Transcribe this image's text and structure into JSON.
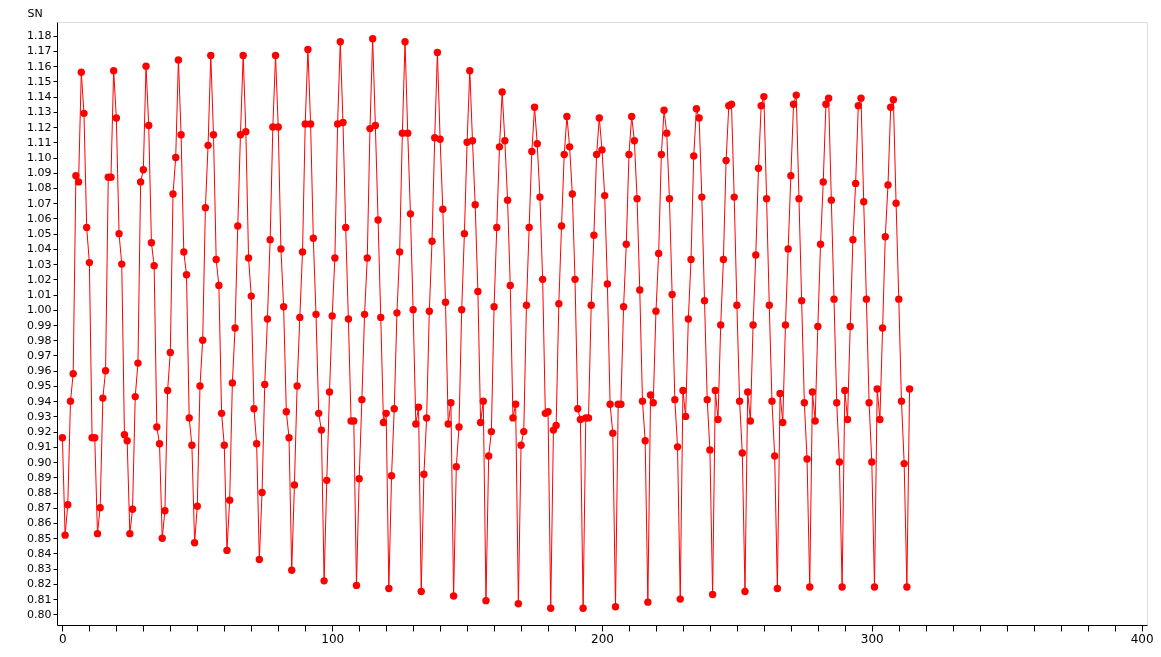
{
  "chart_data": {
    "type": "line",
    "ylabel": "SN",
    "xlim": [
      -2,
      402
    ],
    "ylim": [
      0.793,
      1.189
    ],
    "xticks": [
      0,
      {
        "value": 10,
        "label": null
      },
      {
        "value": 20,
        "label": null
      },
      {
        "value": 30,
        "label": null
      },
      {
        "value": 40,
        "label": null
      },
      {
        "value": 50,
        "label": null
      },
      {
        "value": 60,
        "label": null
      },
      {
        "value": 70,
        "label": null
      },
      {
        "value": 80,
        "label": null
      },
      {
        "value": 90,
        "label": null
      },
      100,
      {
        "value": 110,
        "label": null
      },
      {
        "value": 120,
        "label": null
      },
      {
        "value": 130,
        "label": null
      },
      {
        "value": 140,
        "label": null
      },
      {
        "value": 150,
        "label": null
      },
      {
        "value": 160,
        "label": null
      },
      {
        "value": 170,
        "label": null
      },
      {
        "value": 180,
        "label": null
      },
      {
        "value": 190,
        "label": null
      },
      200,
      {
        "value": 210,
        "label": null
      },
      {
        "value": 220,
        "label": null
      },
      {
        "value": 230,
        "label": null
      },
      {
        "value": 240,
        "label": null
      },
      {
        "value": 250,
        "label": null
      },
      {
        "value": 260,
        "label": null
      },
      {
        "value": 270,
        "label": null
      },
      {
        "value": 280,
        "label": null
      },
      {
        "value": 290,
        "label": null
      },
      300,
      {
        "value": 310,
        "label": null
      },
      {
        "value": 320,
        "label": null
      },
      {
        "value": 330,
        "label": null
      },
      {
        "value": 340,
        "label": null
      },
      {
        "value": 350,
        "label": null
      },
      {
        "value": 360,
        "label": null
      },
      {
        "value": 370,
        "label": null
      },
      {
        "value": 380,
        "label": null
      },
      {
        "value": 390,
        "label": null
      },
      400
    ],
    "yticks": [
      {
        "value": 0.8,
        "label": "0.80"
      },
      0.81,
      0.82,
      0.83,
      0.84,
      0.85,
      0.86,
      0.87,
      0.88,
      0.89,
      {
        "value": 0.9,
        "label": "0.90"
      },
      0.91,
      0.92,
      0.93,
      0.94,
      0.95,
      0.96,
      0.97,
      0.98,
      0.99,
      {
        "value": 1.0,
        "label": "1.00"
      },
      1.01,
      1.02,
      1.03,
      1.04,
      1.05,
      1.06,
      1.07,
      1.08,
      1.09,
      {
        "value": 1.1,
        "label": "1.10"
      },
      1.11,
      1.12,
      1.13,
      1.14,
      1.15,
      1.16,
      1.17,
      1.18
    ],
    "grid": false,
    "marker": "circle",
    "line_style": "solid",
    "series": [
      {
        "color": "#ff0000",
        "x": [
          0,
          1,
          2,
          3,
          4,
          5,
          6,
          7,
          8,
          9,
          10,
          11,
          12,
          13,
          14,
          15,
          16,
          17,
          18,
          19,
          20,
          21,
          22,
          23,
          24,
          25,
          26,
          27,
          28,
          29,
          30,
          31,
          32,
          33,
          34,
          35,
          36,
          37,
          38,
          39,
          40,
          41,
          42,
          43,
          44,
          45,
          46,
          47,
          48,
          49,
          50,
          51,
          52,
          53,
          54,
          55,
          56,
          57,
          58,
          59,
          60,
          61,
          62,
          63,
          64,
          65,
          66,
          67,
          68,
          69,
          70,
          71,
          72,
          73,
          74,
          75,
          76,
          77,
          78,
          79,
          80,
          81,
          82,
          83,
          84,
          85,
          86,
          87,
          88,
          89,
          90,
          91,
          92,
          93,
          94,
          95,
          96,
          97,
          98,
          99,
          100,
          101,
          102,
          103,
          104,
          105,
          106,
          107,
          108,
          109,
          110,
          111,
          112,
          113,
          114,
          115,
          116,
          117,
          118,
          119,
          120,
          121,
          122,
          123,
          124,
          125,
          126,
          127,
          128,
          129,
          130,
          131,
          132,
          133,
          134,
          135,
          136,
          137,
          138,
          139,
          140,
          141,
          142,
          143,
          144,
          145,
          146,
          147,
          148,
          149,
          150,
          151,
          152,
          153,
          154,
          155,
          156,
          157,
          158,
          159,
          160,
          161,
          162,
          163,
          164,
          165,
          166,
          167,
          168,
          169,
          170,
          171,
          172,
          173,
          174,
          175,
          176,
          177,
          178,
          179,
          180,
          181,
          182,
          183,
          184,
          185,
          186,
          187,
          188,
          189,
          190,
          191,
          192,
          193,
          194,
          195,
          196,
          197,
          198,
          199,
          200,
          201,
          202,
          203,
          204,
          205,
          206,
          207,
          208,
          209,
          210,
          211,
          212,
          213,
          214,
          215,
          216,
          217,
          218,
          219,
          220,
          221,
          222,
          223,
          224,
          225,
          226,
          227,
          228,
          229,
          230,
          231,
          232,
          233,
          234,
          235,
          236,
          237,
          238,
          239,
          240,
          241,
          242,
          243,
          244,
          245,
          246,
          247,
          248,
          249,
          250,
          251,
          252,
          253,
          254,
          255,
          256,
          257,
          258,
          259,
          260,
          261,
          262,
          263,
          264,
          265,
          266,
          267,
          268,
          269,
          270,
          271,
          272,
          273,
          274,
          275,
          276,
          277,
          278,
          279,
          280,
          281,
          282,
          283,
          284,
          285,
          286,
          287,
          288,
          289,
          290,
          291,
          292,
          293,
          294,
          295,
          296,
          297,
          298,
          299,
          300,
          301,
          302,
          303,
          304,
          305,
          306,
          307,
          308,
          309,
          310,
          311,
          312,
          313,
          314
        ],
        "values": [
          0.916,
          0.852,
          0.872,
          0.94,
          0.958,
          1.088,
          1.084,
          1.156,
          1.129,
          1.054,
          1.031,
          0.916,
          0.916,
          0.853,
          0.87,
          0.942,
          0.96,
          1.087,
          1.087,
          1.157,
          1.126,
          1.05,
          1.03,
          0.918,
          0.914,
          0.853,
          0.869,
          0.943,
          0.965,
          1.084,
          1.092,
          1.16,
          1.121,
          1.044,
          1.029,
          0.923,
          0.912,
          0.85,
          0.868,
          0.947,
          0.972,
          1.076,
          1.1,
          1.164,
          1.115,
          1.038,
          1.023,
          0.929,
          0.911,
          0.847,
          0.871,
          0.95,
          0.98,
          1.067,
          1.108,
          1.167,
          1.115,
          1.033,
          1.016,
          0.932,
          0.911,
          0.842,
          0.875,
          0.952,
          0.988,
          1.055,
          1.115,
          1.167,
          1.117,
          1.034,
          1.009,
          0.935,
          0.912,
          0.836,
          0.88,
          0.951,
          0.994,
          1.046,
          1.12,
          1.167,
          1.12,
          1.04,
          1.002,
          0.933,
          0.916,
          0.829,
          0.885,
          0.95,
          0.995,
          1.038,
          1.122,
          1.171,
          1.122,
          1.047,
          0.997,
          0.932,
          0.921,
          0.822,
          0.888,
          0.946,
          0.996,
          1.034,
          1.122,
          1.176,
          1.123,
          1.054,
          0.994,
          0.927,
          0.927,
          0.819,
          0.889,
          0.941,
          0.997,
          1.034,
          1.119,
          1.178,
          1.121,
          1.059,
          0.995,
          0.926,
          0.932,
          0.817,
          0.891,
          0.935,
          0.998,
          1.038,
          1.116,
          1.176,
          1.116,
          1.063,
          1.0,
          0.925,
          0.936,
          0.815,
          0.892,
          0.929,
          0.999,
          1.045,
          1.113,
          1.169,
          1.112,
          1.066,
          1.005,
          0.925,
          0.939,
          0.812,
          0.897,
          0.923,
          1.0,
          1.05,
          1.11,
          1.157,
          1.111,
          1.069,
          1.012,
          0.926,
          0.94,
          0.809,
          0.904,
          0.92,
          1.002,
          1.054,
          1.107,
          1.143,
          1.111,
          1.072,
          1.016,
          0.929,
          0.938,
          0.807,
          0.911,
          0.92,
          1.003,
          1.054,
          1.104,
          1.133,
          1.109,
          1.074,
          1.02,
          0.932,
          0.933,
          0.804,
          0.921,
          0.924,
          1.004,
          1.055,
          1.102,
          1.127,
          1.107,
          1.076,
          1.02,
          0.935,
          0.928,
          0.804,
          0.929,
          0.929,
          1.003,
          1.049,
          1.102,
          1.126,
          1.105,
          1.075,
          1.017,
          0.938,
          0.919,
          0.805,
          0.938,
          0.938,
          1.002,
          1.043,
          1.102,
          1.127,
          1.111,
          1.073,
          1.013,
          0.94,
          0.914,
          0.808,
          0.944,
          0.939,
          0.999,
          1.037,
          1.102,
          1.131,
          1.116,
          1.073,
          1.01,
          0.941,
          0.91,
          0.81,
          0.947,
          0.93,
          0.994,
          1.033,
          1.101,
          1.132,
          1.126,
          1.074,
          1.006,
          0.941,
          0.908,
          0.813,
          0.947,
          0.928,
          0.99,
          1.033,
          1.098,
          1.134,
          1.135,
          1.074,
          1.003,
          0.94,
          0.906,
          0.815,
          0.946,
          0.927,
          0.99,
          1.036,
          1.093,
          1.134,
          1.14,
          1.073,
          1.003,
          0.94,
          0.904,
          0.817,
          0.945,
          0.926,
          0.99,
          1.04,
          1.088,
          1.135,
          1.141,
          1.073,
          1.006,
          0.939,
          0.902,
          0.818,
          0.946,
          0.927,
          0.989,
          1.043,
          1.084,
          1.135,
          1.139,
          1.072,
          1.007,
          0.939,
          0.9,
          0.818,
          0.947,
          0.928,
          0.989,
          1.046,
          1.083,
          1.134,
          1.139,
          1.071,
          1.007,
          0.939,
          0.9,
          0.818,
          0.948,
          0.928,
          0.988,
          1.048,
          1.082,
          1.133,
          1.138,
          1.07,
          1.007,
          0.94,
          0.899,
          0.818,
          0.948
        ]
      }
    ]
  }
}
